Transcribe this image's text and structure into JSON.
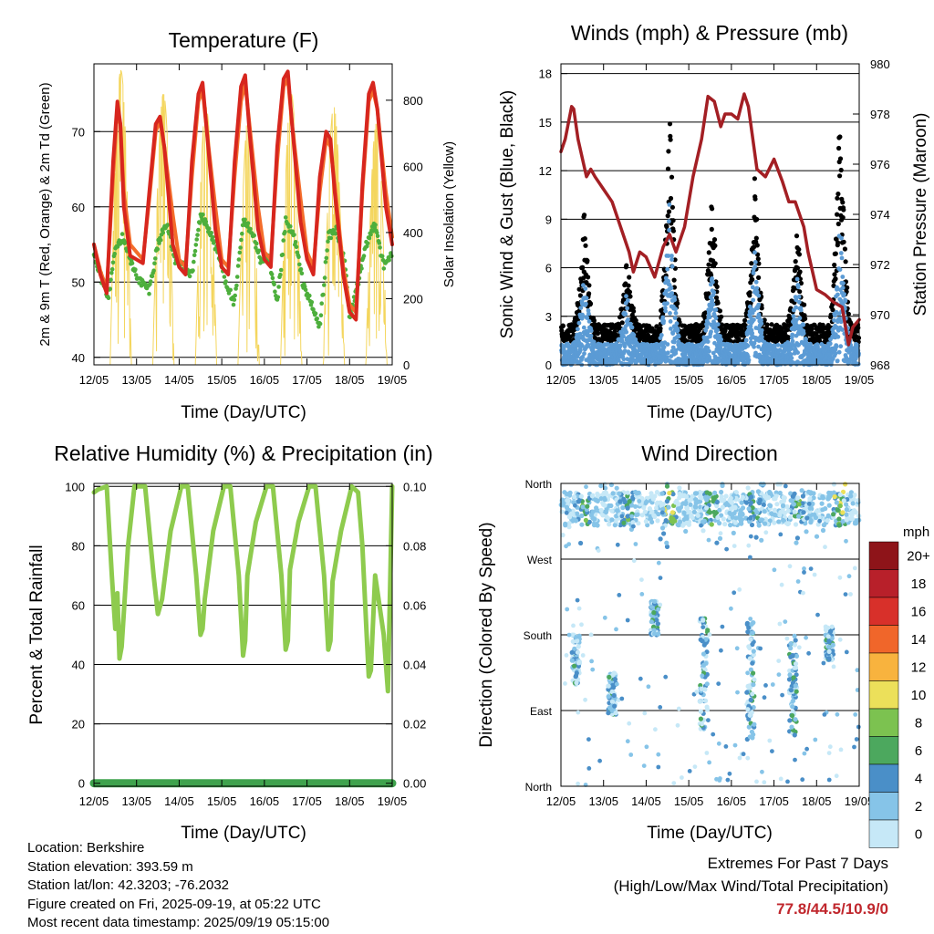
{
  "colors": {
    "temp2m": "#d7261e",
    "temp9m": "#f46d2b",
    "dewpoint": "#4daf3c",
    "solar": "#f4d65e",
    "wind": "#5b9bd5",
    "gust": "#000000",
    "pressure": "#a31f24",
    "humidity": "#8ecb4e",
    "precip": "#3fa34d",
    "extremes_value": "#c0272d"
  },
  "info": {
    "location": "Location: Berkshire",
    "elevation": "Station elevation: 393.59 m",
    "latlon": "Station lat/lon: 42.3203; -76.2032",
    "created": "Figure created on Fri, 2025-09-19, at 05:22 UTC",
    "recent": "Most recent data timestamp: 2025/09/19 05:15:00"
  },
  "extremes": {
    "title": "Extremes For Past 7 Days",
    "subtitle": "(High/Low/Max Wind/Total Precipitation)",
    "value": "77.8/44.5/10.9/0"
  },
  "chart_data": [
    {
      "type": "line",
      "title": "Temperature (F)",
      "xlabel": "Time (Day/UTC)",
      "ylabel": "2m & 9m T (Red, Orange) & 2m Td (Green)",
      "y2label": "Solar Insolation (Yellow)",
      "x_ticks": [
        "12/05",
        "13/05",
        "14/05",
        "15/05",
        "16/05",
        "17/05",
        "18/05",
        "19/05"
      ],
      "xlim": [
        0,
        7
      ],
      "ylim": [
        39,
        79
      ],
      "y_ticks": [
        40,
        50,
        60,
        70
      ],
      "y2lim": [
        0,
        910
      ],
      "y2_ticks": [
        0,
        200,
        400,
        600,
        800
      ],
      "grid": true,
      "series": [
        {
          "name": "2m T",
          "color_key": "temp2m",
          "x": [
            0,
            0.15,
            0.3,
            0.45,
            0.55,
            0.62,
            0.7,
            0.85,
            1.0,
            1.15,
            1.3,
            1.45,
            1.55,
            1.65,
            1.85,
            2.0,
            2.15,
            2.3,
            2.45,
            2.55,
            2.65,
            2.85,
            3.0,
            3.15,
            3.3,
            3.45,
            3.55,
            3.65,
            3.85,
            4.0,
            4.15,
            4.3,
            4.45,
            4.55,
            4.65,
            4.85,
            5.0,
            5.15,
            5.3,
            5.45,
            5.55,
            5.65,
            5.85,
            6.0,
            6.15,
            6.3,
            6.45,
            6.55,
            6.65,
            6.85,
            7.0
          ],
          "values": [
            55,
            51,
            48.5,
            66,
            74,
            71,
            60,
            53.5,
            53,
            52.5,
            62,
            71,
            72,
            68,
            55,
            52,
            51,
            66,
            75,
            76.5,
            70,
            57,
            52,
            51,
            66,
            76,
            77.5,
            70,
            57,
            53,
            52,
            68,
            77,
            78,
            71,
            58,
            53,
            51,
            64,
            70,
            69,
            62,
            51,
            46,
            45,
            63,
            75,
            76.5,
            73,
            60,
            55
          ]
        },
        {
          "name": "9m T",
          "color_key": "temp9m",
          "x": [
            0,
            0.15,
            0.3,
            0.45,
            0.55,
            0.62,
            0.7,
            0.85,
            1.0,
            1.15,
            1.3,
            1.45,
            1.55,
            1.65,
            1.85,
            2.0,
            2.15,
            2.3,
            2.45,
            2.55,
            2.65,
            2.85,
            3.0,
            3.15,
            3.3,
            3.45,
            3.55,
            3.65,
            3.85,
            4.0,
            4.15,
            4.3,
            4.45,
            4.55,
            4.65,
            4.85,
            5.0,
            5.15,
            5.3,
            5.45,
            5.55,
            5.65,
            5.85,
            6.0,
            6.15,
            6.3,
            6.45,
            6.55,
            6.65,
            6.85,
            7.0
          ],
          "values": [
            55,
            51.5,
            49,
            64,
            73,
            71,
            62,
            55,
            54,
            53,
            61,
            70,
            71.5,
            68,
            59,
            53,
            52,
            64,
            74,
            75.5,
            70,
            60,
            53,
            52,
            64,
            74,
            76.5,
            71,
            60,
            54,
            53,
            66,
            76,
            77,
            71,
            61,
            54,
            52,
            62,
            69,
            68,
            63,
            52,
            47,
            46,
            62,
            74,
            75.5,
            73,
            62,
            56
          ]
        },
        {
          "name": "2m Td",
          "color_key": "dewpoint",
          "x": [
            0,
            0.2,
            0.35,
            0.5,
            0.7,
            0.9,
            1.1,
            1.3,
            1.5,
            1.7,
            1.9,
            2.1,
            2.3,
            2.5,
            2.7,
            2.9,
            3.1,
            3.3,
            3.5,
            3.7,
            3.9,
            4.1,
            4.3,
            4.5,
            4.7,
            4.9,
            5.1,
            5.3,
            5.5,
            5.7,
            5.9,
            6.0,
            6.2,
            6.4,
            6.6,
            6.8,
            7.0
          ],
          "values": [
            54,
            50,
            48,
            55,
            56,
            52,
            50,
            49,
            55,
            58,
            53,
            52,
            51,
            59,
            57,
            54,
            50,
            47,
            58,
            57,
            53,
            53,
            47,
            58,
            56,
            50,
            47,
            44,
            56,
            57,
            52,
            45,
            50,
            55,
            58,
            52,
            54
          ]
        },
        {
          "name": "Solar",
          "axis": "y2",
          "color_key": "solar",
          "daytime_peaks": [
            {
              "day": 0,
              "peak": 890
            },
            {
              "day": 1,
              "peak": 820
            },
            {
              "day": 2,
              "peak": 780
            },
            {
              "day": 3,
              "peak": 760
            },
            {
              "day": 4,
              "peak": 820
            },
            {
              "day": 5,
              "peak": 780
            },
            {
              "day": 6,
              "peak": 730
            }
          ],
          "daytime_window": [
            0.38,
            0.88
          ],
          "night_value": 0
        }
      ]
    },
    {
      "type": "scatter",
      "title": "Winds (mph) & Pressure (mb)",
      "xlabel": "Time (Day/UTC)",
      "ylabel": "Sonic Wind & Gust (Blue, Black)",
      "y2label": "Station Pressure (Maroon)",
      "x_ticks": [
        "12/05",
        "13/05",
        "14/05",
        "15/05",
        "16/05",
        "17/05",
        "18/05",
        "19/05"
      ],
      "xlim": [
        0,
        7
      ],
      "ylim": [
        0,
        18.6
      ],
      "y_ticks": [
        0,
        3,
        6,
        9,
        12,
        15,
        18
      ],
      "y2lim": [
        968,
        980
      ],
      "y2_ticks": [
        968,
        970,
        972,
        974,
        976,
        978,
        980
      ],
      "grid": true,
      "wind_daily_peaks": [
        {
          "day": 0.5,
          "wind": 6,
          "gust": 10
        },
        {
          "day": 1.5,
          "wind": 5,
          "gust": 7
        },
        {
          "day": 2.5,
          "wind": 10.9,
          "gust": 16
        },
        {
          "day": 3.5,
          "wind": 6,
          "gust": 11
        },
        {
          "day": 4.5,
          "wind": 8,
          "gust": 12
        },
        {
          "day": 5.5,
          "wind": 6,
          "gust": 9
        },
        {
          "day": 6.5,
          "wind": 10,
          "gust": 17
        }
      ],
      "series": [
        {
          "name": "Pressure",
          "axis": "y2",
          "color_key": "pressure",
          "x": [
            0,
            0.1,
            0.25,
            0.3,
            0.4,
            0.6,
            0.7,
            0.8,
            1.0,
            1.2,
            1.4,
            1.6,
            1.7,
            1.85,
            2.0,
            2.2,
            2.4,
            2.55,
            2.7,
            2.9,
            3.1,
            3.3,
            3.45,
            3.6,
            3.75,
            3.85,
            4.0,
            4.15,
            4.3,
            4.4,
            4.6,
            4.8,
            5.0,
            5.2,
            5.35,
            5.5,
            5.7,
            5.8,
            6.0,
            6.2,
            6.4,
            6.6,
            6.75,
            6.85,
            7.0
          ],
          "values": [
            976.5,
            977,
            978.3,
            978.2,
            977,
            975.5,
            975.8,
            975.5,
            975,
            974.5,
            973.5,
            972.5,
            971.7,
            972.5,
            972.3,
            971.5,
            972.7,
            973.2,
            972.5,
            973.5,
            975.5,
            977,
            978.7,
            978.5,
            977.5,
            978,
            978,
            977.8,
            978.8,
            978.3,
            975.8,
            975.5,
            976.2,
            975.3,
            974.5,
            974.5,
            973.5,
            972.5,
            971,
            970.8,
            970.5,
            970.3,
            968.8,
            969.5,
            969.8
          ]
        }
      ]
    },
    {
      "type": "line",
      "title": "Relative Humidity (%) & Precipitation (in)",
      "xlabel": "Time (Day/UTC)",
      "ylabel": "Percent & Total Rainfall",
      "x_ticks": [
        "12/05",
        "13/05",
        "14/05",
        "15/05",
        "16/05",
        "17/05",
        "18/05",
        "19/05"
      ],
      "xlim": [
        0,
        7
      ],
      "ylim": [
        -1,
        101
      ],
      "y_ticks": [
        0,
        20,
        40,
        60,
        80,
        100
      ],
      "y2lim": [
        -0.001,
        0.101
      ],
      "y2_ticks": [
        "0.00",
        "0.02",
        "0.04",
        "0.06",
        "0.08",
        "0.10"
      ],
      "grid": true,
      "series": [
        {
          "name": "RH",
          "color_key": "humidity",
          "x": [
            0,
            0.1,
            0.3,
            0.42,
            0.5,
            0.55,
            0.6,
            0.65,
            0.8,
            0.95,
            1.05,
            1.2,
            1.4,
            1.5,
            1.6,
            1.8,
            2.05,
            2.2,
            2.4,
            2.5,
            2.55,
            2.6,
            2.8,
            3.05,
            3.2,
            3.4,
            3.5,
            3.55,
            3.6,
            3.8,
            4.05,
            4.2,
            4.4,
            4.5,
            4.55,
            4.6,
            4.8,
            5.05,
            5.2,
            5.4,
            5.5,
            5.55,
            5.6,
            5.8,
            6.05,
            6.2,
            6.3,
            6.4,
            6.45,
            6.5,
            6.6,
            6.8,
            6.9,
            7.0
          ],
          "values": [
            98,
            99,
            100,
            70,
            52,
            64,
            42,
            46,
            80,
            100,
            100,
            100,
            70,
            57,
            62,
            85,
            100,
            100,
            70,
            50,
            52,
            62,
            85,
            100,
            100,
            70,
            43,
            48,
            70,
            88,
            100,
            100,
            70,
            45,
            48,
            72,
            88,
            100,
            100,
            70,
            45,
            48,
            68,
            85,
            100,
            98,
            80,
            50,
            36,
            38,
            70,
            50,
            31,
            100
          ]
        },
        {
          "name": "Precipitation",
          "axis": "y2",
          "color_key": "precip",
          "x": [
            0,
            7
          ],
          "values": [
            0,
            0
          ]
        }
      ]
    },
    {
      "type": "scatter",
      "title": "Wind Direction",
      "xlabel": "Time (Day/UTC)",
      "ylabel": "Direction (Colored By Speed)",
      "x_ticks": [
        "12/05",
        "13/05",
        "14/05",
        "15/05",
        "16/05",
        "17/05",
        "18/05",
        "19/05"
      ],
      "xlim": [
        0,
        7
      ],
      "ylim": [
        0,
        360
      ],
      "y_ticks": [
        "North",
        "East",
        "South",
        "West",
        "North"
      ],
      "grid": true,
      "legend_title": "mph",
      "legend": [
        "0",
        "2",
        "4",
        "6",
        "8",
        "10",
        "12",
        "14",
        "16",
        "18",
        "20+"
      ],
      "legend_colors": [
        "#c6e8f7",
        "#86c4e8",
        "#4a8fc8",
        "#4ca85e",
        "#7cc250",
        "#ece05a",
        "#f8b33e",
        "#f0662a",
        "#d8302a",
        "#b8202a",
        "#8e1419"
      ],
      "clusters": [
        {
          "x": [
            0,
            7
          ],
          "deg": [
            320,
            360
          ],
          "kind": "dominant-northwest"
        },
        {
          "x": [
            0.3,
            0.5
          ],
          "deg": [
            130,
            180
          ],
          "kind": "morning-southeast"
        },
        {
          "x": [
            3.3,
            3.5
          ],
          "deg": [
            60,
            180
          ],
          "kind": "morning-southeast"
        },
        {
          "x": [
            4.4,
            4.6
          ],
          "deg": [
            60,
            180
          ],
          "kind": "morning-southeast"
        },
        {
          "x": [
            5.4,
            5.6
          ],
          "deg": [
            60,
            180
          ],
          "kind": "morning-southeast"
        }
      ]
    }
  ]
}
